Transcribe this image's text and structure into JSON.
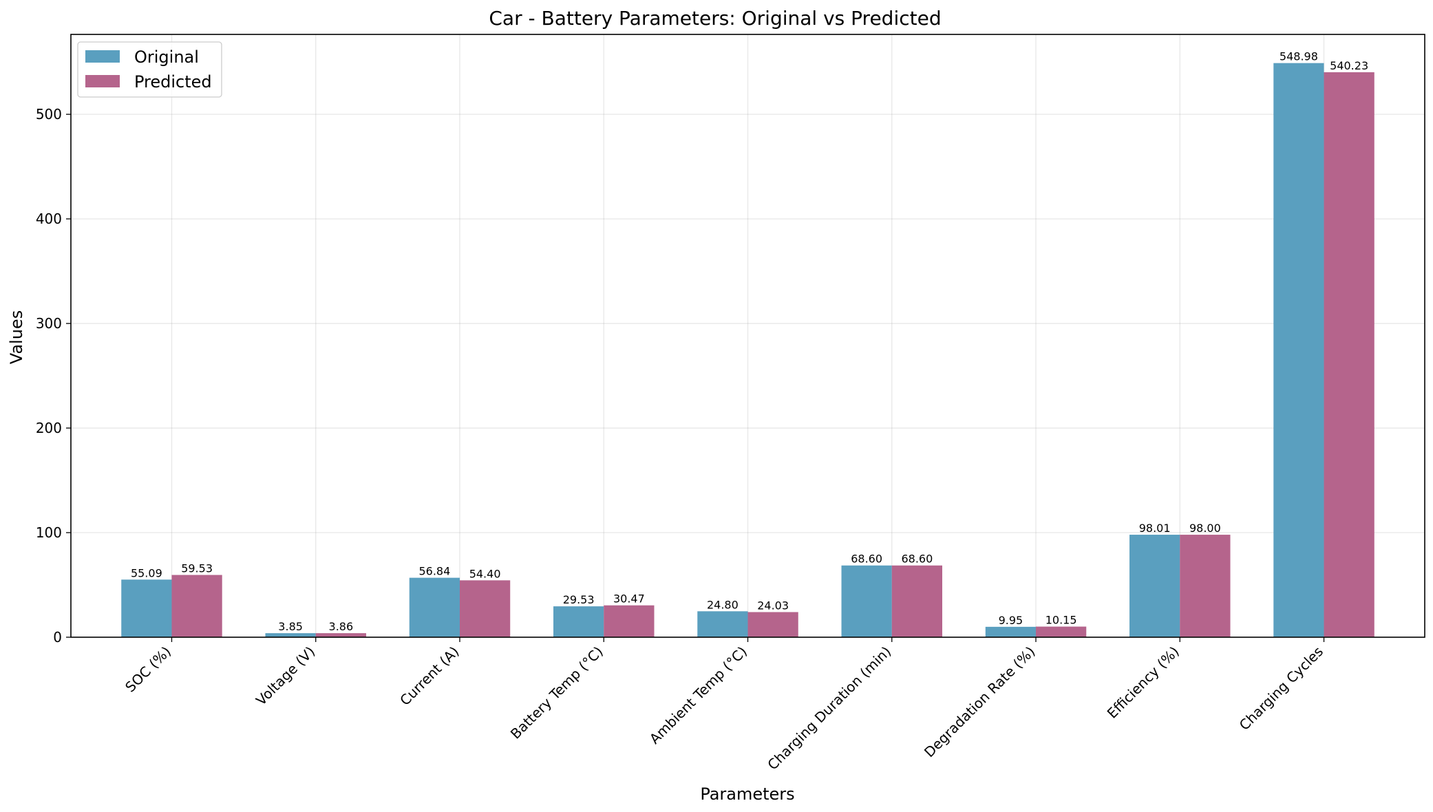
{
  "chart_data": {
    "type": "bar",
    "title": "Car - Battery Parameters: Original vs Predicted",
    "xlabel": "Parameters",
    "ylabel": "Values",
    "categories": [
      "SOC (%)",
      "Voltage (V)",
      "Current (A)",
      "Battery Temp (°C)",
      "Ambient Temp (°C)",
      "Charging Duration (min)",
      "Degradation Rate (%)",
      "Efficiency (%)",
      "Charging Cycles"
    ],
    "series": [
      {
        "name": "Original",
        "color": "#5a9fbf",
        "values": [
          55.09,
          3.85,
          56.84,
          29.53,
          24.8,
          68.6,
          9.95,
          98.01,
          548.98
        ],
        "labels": [
          "55.09",
          "3.85",
          "56.84",
          "29.53",
          "24.80",
          "68.60",
          "9.95",
          "98.01",
          "548.98"
        ]
      },
      {
        "name": "Predicted",
        "color": "#b5648c",
        "values": [
          59.53,
          3.86,
          54.4,
          30.47,
          24.03,
          68.6,
          10.15,
          98.0,
          540.23
        ],
        "labels": [
          "59.53",
          "3.86",
          "54.40",
          "30.47",
          "24.03",
          "68.60",
          "10.15",
          "98.00",
          "540.23"
        ]
      }
    ],
    "ylim": [
      0,
      576.4
    ],
    "yticks": [
      0,
      100,
      200,
      300,
      400,
      500
    ],
    "grid": true,
    "legend_position": "top-left"
  }
}
